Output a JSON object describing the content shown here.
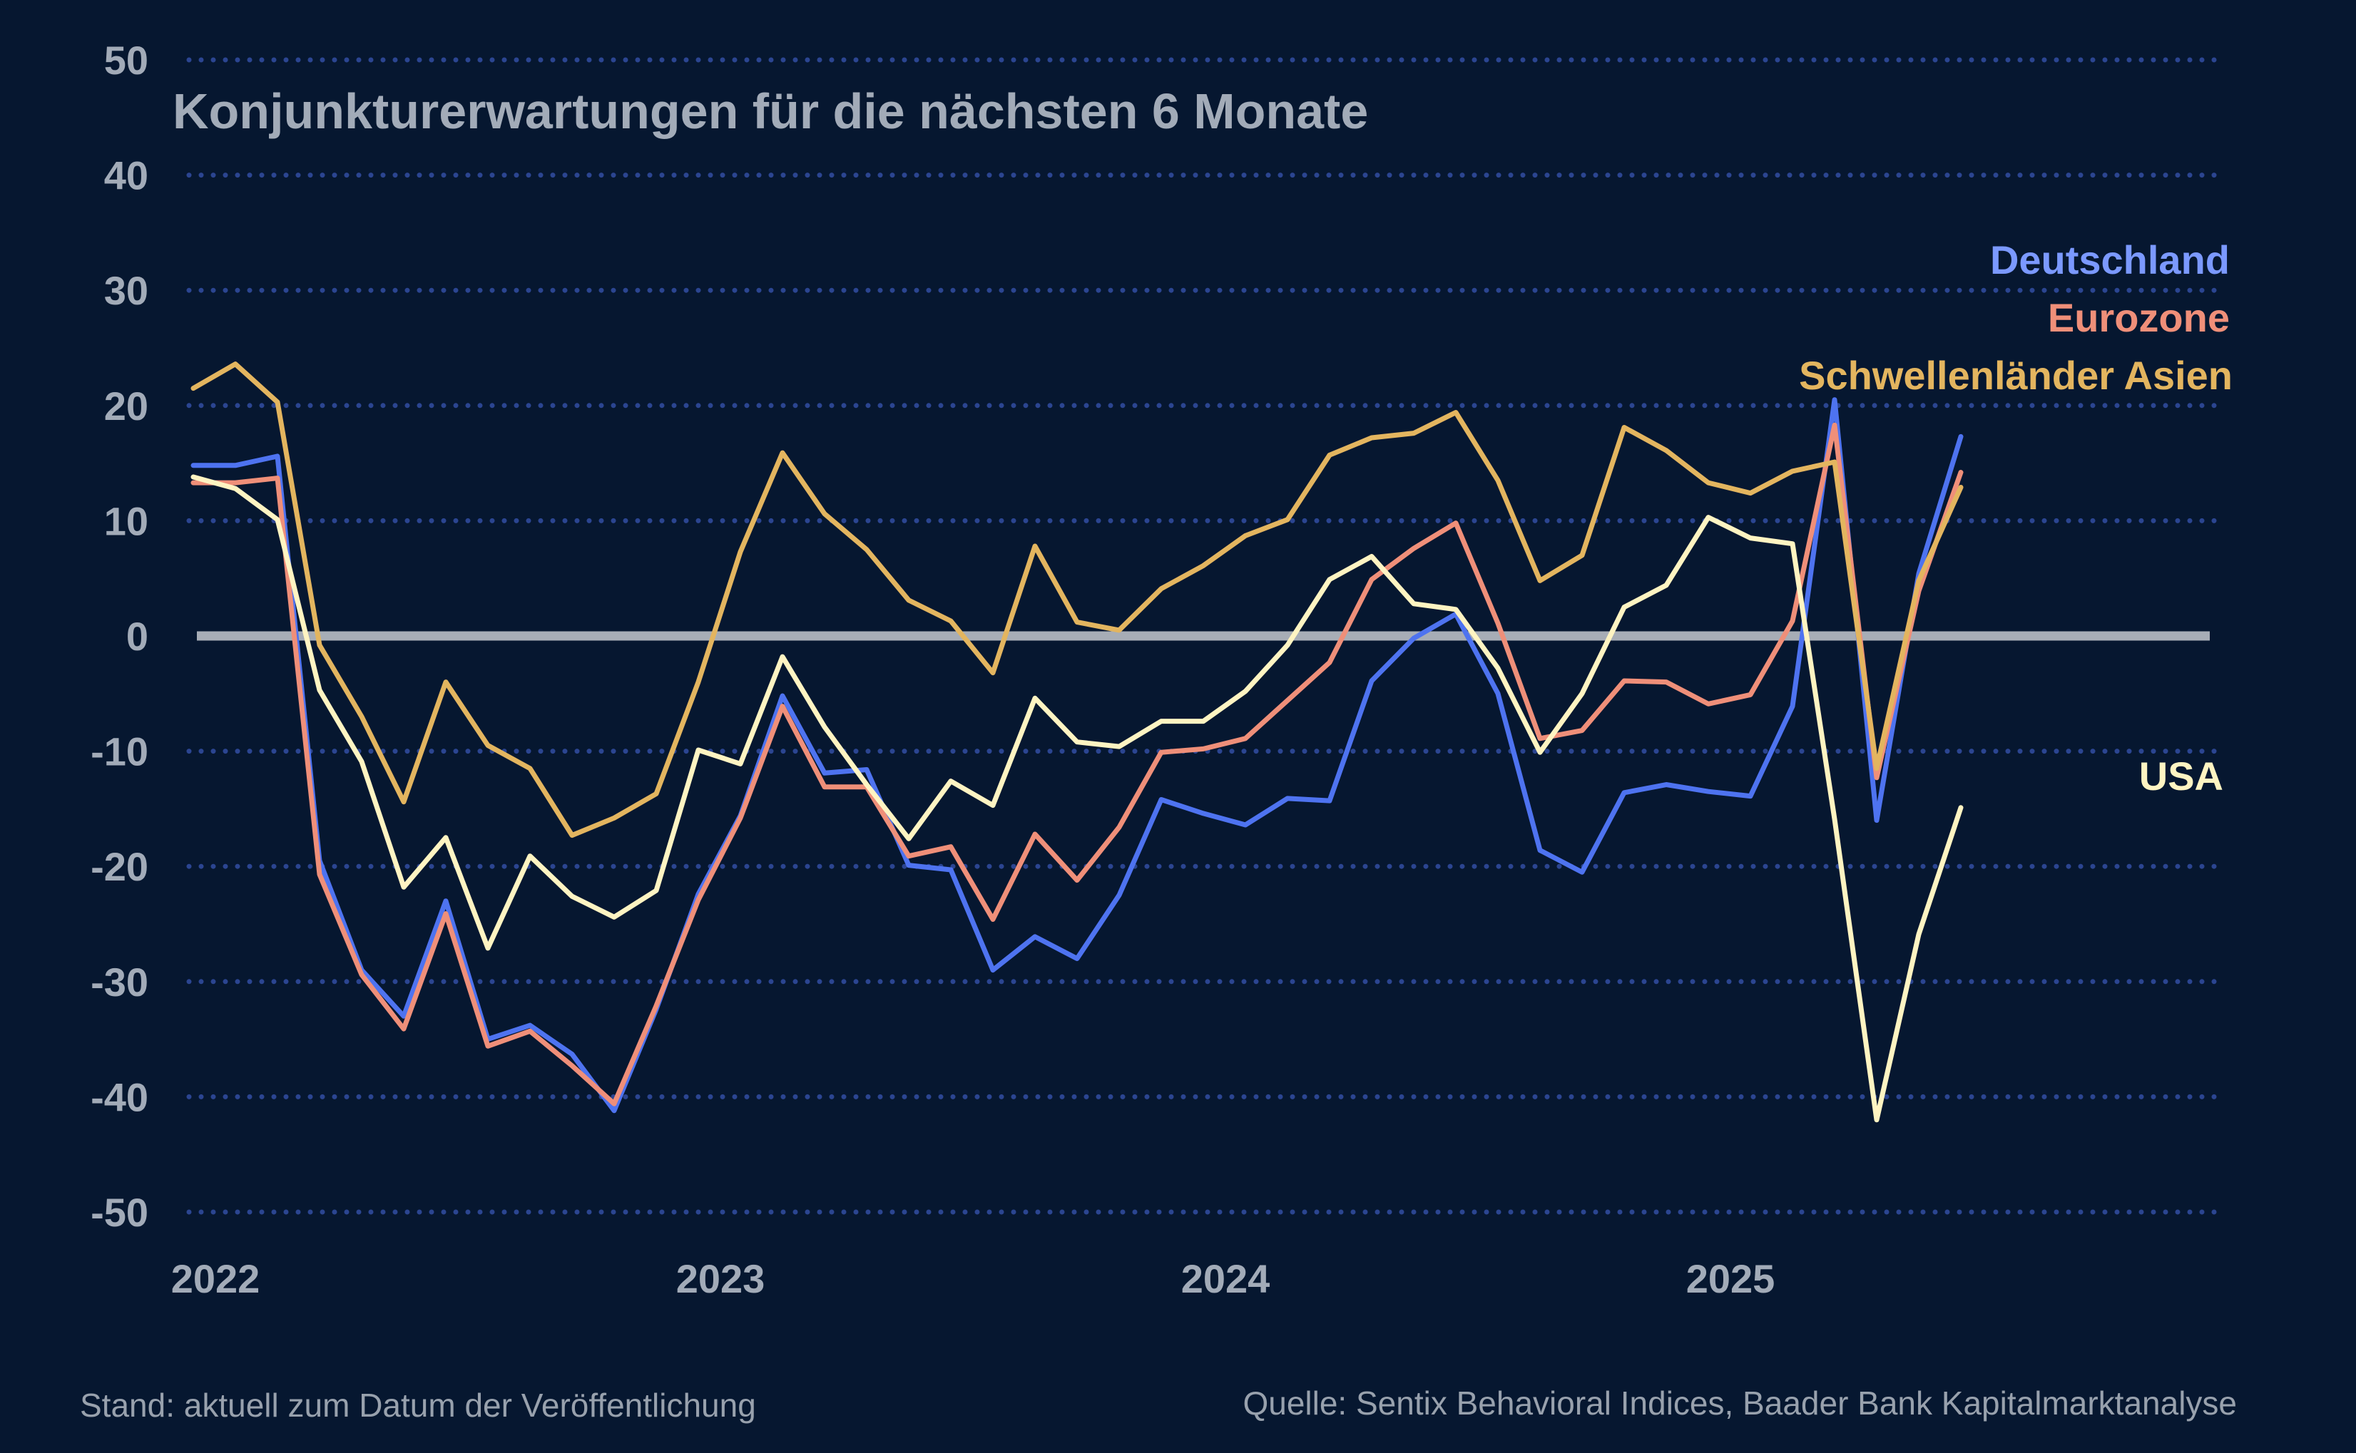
{
  "chart_data": {
    "type": "line",
    "title": "Konjunkturerwartungen für die nächsten 6 Monate",
    "xlabel": "",
    "ylabel": "",
    "x_tick_labels": [
      "2022",
      "2023",
      "2024",
      "2025"
    ],
    "y_tick_labels": [
      "50",
      "40",
      "30",
      "20",
      "10",
      "0",
      "-10",
      "-20",
      "-30",
      "-40",
      "-50"
    ],
    "ylim": [
      -50,
      50
    ],
    "grid": "horizontal dotted",
    "zero_line": true,
    "legend_placement": "right, at line ends",
    "x_start": "2022-01",
    "x_step": "1 month",
    "series": [
      {
        "name": "Deutschland",
        "color": "#4e73f0",
        "label_color": "#7b99ff",
        "values": [
          14.8,
          14.8,
          15.6,
          -19.5,
          -29,
          -33,
          -23,
          -35,
          -33.8,
          -36.3,
          -41.2,
          -32.4,
          -22.4,
          -15.6,
          -5.2,
          -11.9,
          -11.6,
          -19.9,
          -20.3,
          -29,
          -26.1,
          -28,
          -22.5,
          -14.2,
          -15.4,
          -16.4,
          -14.1,
          -14.3,
          -3.9,
          -0.2,
          1.9,
          -5,
          -18.6,
          -20.5,
          -13.6,
          -12.9,
          -13.5,
          -13.9,
          -6.1,
          20.5,
          -16,
          5.4,
          17.3
        ]
      },
      {
        "name": "Eurozone",
        "color": "#ef8f79",
        "label_color": "#ef8f79",
        "values": [
          13.3,
          13.3,
          13.7,
          -20.7,
          -29.4,
          -34.1,
          -24.1,
          -35.6,
          -34.3,
          -37.3,
          -40.6,
          -32.1,
          -22.9,
          -15.8,
          -6.1,
          -13.1,
          -13.1,
          -19.1,
          -18.3,
          -24.6,
          -17.2,
          -21.2,
          -16.6,
          -10.1,
          -9.8,
          -8.9,
          -5.6,
          -2.3,
          4.9,
          7.6,
          9.8,
          1.1,
          -8.9,
          -8.2,
          -3.9,
          -4,
          -5.9,
          -5.1,
          1.3,
          18.3,
          -12.3,
          3.9,
          14.2
        ]
      },
      {
        "name": "Schwellenländer Asien",
        "color": "#e3b55f",
        "label_color": "#e3b55f",
        "values": [
          21.5,
          23.6,
          20.3,
          -0.8,
          -7,
          -14.4,
          -4,
          -9.5,
          -11.5,
          -17.3,
          -15.8,
          -13.7,
          -4,
          7.3,
          15.9,
          10.6,
          7.5,
          3.1,
          1.3,
          -3.2,
          7.8,
          1.2,
          0.5,
          4.1,
          6.1,
          8.7,
          10.1,
          15.7,
          17.2,
          17.6,
          19.4,
          13.5,
          4.8,
          7,
          18.1,
          16.1,
          13.3,
          12.4,
          14.3,
          15.1,
          -11.5,
          4.8,
          12.9
        ]
      },
      {
        "name": "USA",
        "color": "#fff4c2",
        "label_color": "#fff4c2",
        "values": [
          13.8,
          12.8,
          10.1,
          -4.7,
          -10.9,
          -21.8,
          -17.5,
          -27.1,
          -19.1,
          -22.6,
          -24.4,
          -22.1,
          -9.9,
          -11.1,
          -1.8,
          -7.9,
          -12.9,
          -17.6,
          -12.6,
          -14.7,
          -5.4,
          -9.2,
          -9.6,
          -7.4,
          -7.4,
          -4.8,
          -0.8,
          4.9,
          6.9,
          2.8,
          2.3,
          -2.8,
          -10.1,
          -5,
          2.5,
          4.4,
          10.3,
          8.5,
          8,
          -15.9,
          -42,
          -25.9,
          -14.9
        ]
      }
    ]
  },
  "footer": {
    "left": "Stand: aktuell zum Datum der Veröffentlichung",
    "right": "Quelle: Sentix Behavioral Indices, Baader Bank Kapitalmarktanalyse"
  }
}
